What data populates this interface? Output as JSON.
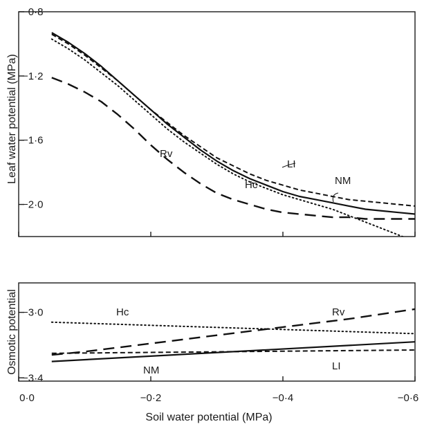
{
  "chart_data": [
    {
      "type": "line",
      "title": "",
      "xlabel": "Soil water potential (MPa)",
      "ylabel": "Leaf water potential (MPa)",
      "xlim": [
        0.0,
        -0.6
      ],
      "ylim": [
        -2.2,
        -0.8
      ],
      "yticks": [
        -0.8,
        -1.2,
        -1.6,
        -2.0
      ],
      "ytick_labels": [
        "−0·8",
        "−1·2",
        "−1·6",
        "−2·0"
      ],
      "series": [
        {
          "name": "NM",
          "style": "solid",
          "x": [
            -0.05,
            -0.075,
            -0.1,
            -0.125,
            -0.15,
            -0.175,
            -0.2,
            -0.225,
            -0.25,
            -0.275,
            -0.3,
            -0.325,
            -0.35,
            -0.375,
            -0.4,
            -0.425,
            -0.45,
            -0.475,
            -0.5,
            -0.525,
            -0.55,
            -0.575,
            -0.6
          ],
          "y": [
            -0.93,
            -0.99,
            -1.06,
            -1.14,
            -1.23,
            -1.32,
            -1.41,
            -1.5,
            -1.58,
            -1.66,
            -1.73,
            -1.79,
            -1.84,
            -1.88,
            -1.92,
            -1.95,
            -1.97,
            -1.99,
            -2.01,
            -2.03,
            -2.04,
            -2.05,
            -2.06
          ]
        },
        {
          "name": "LI",
          "style": "short-dash",
          "x": [
            -0.05,
            -0.075,
            -0.1,
            -0.125,
            -0.15,
            -0.175,
            -0.2,
            -0.225,
            -0.25,
            -0.275,
            -0.3,
            -0.325,
            -0.35,
            -0.375,
            -0.4,
            -0.425,
            -0.45,
            -0.475,
            -0.5,
            -0.525,
            -0.55,
            -0.575,
            -0.6
          ],
          "y": [
            -0.94,
            -1.0,
            -1.07,
            -1.15,
            -1.23,
            -1.32,
            -1.41,
            -1.49,
            -1.57,
            -1.64,
            -1.71,
            -1.76,
            -1.81,
            -1.85,
            -1.88,
            -1.91,
            -1.93,
            -1.95,
            -1.97,
            -1.98,
            -1.99,
            -2.0,
            -2.01
          ]
        },
        {
          "name": "Hc",
          "style": "dotted",
          "x": [
            -0.05,
            -0.075,
            -0.1,
            -0.125,
            -0.15,
            -0.175,
            -0.2,
            -0.225,
            -0.25,
            -0.275,
            -0.3,
            -0.325,
            -0.35,
            -0.375,
            -0.4,
            -0.425,
            -0.45,
            -0.475,
            -0.5,
            -0.525,
            -0.55,
            -0.575,
            -0.6
          ],
          "y": [
            -0.97,
            -1.03,
            -1.1,
            -1.18,
            -1.26,
            -1.35,
            -1.44,
            -1.53,
            -1.61,
            -1.68,
            -1.75,
            -1.81,
            -1.86,
            -1.9,
            -1.94,
            -1.97,
            -2.0,
            -2.03,
            -2.07,
            -2.11,
            -2.15,
            -2.19,
            -2.23
          ]
        },
        {
          "name": "Rv",
          "style": "long-dash",
          "x": [
            -0.05,
            -0.075,
            -0.1,
            -0.125,
            -0.15,
            -0.175,
            -0.2,
            -0.225,
            -0.25,
            -0.275,
            -0.3,
            -0.325,
            -0.35,
            -0.375,
            -0.4,
            -0.425,
            -0.45,
            -0.475,
            -0.5,
            -0.525,
            -0.55,
            -0.575,
            -0.6
          ],
          "y": [
            -1.21,
            -1.25,
            -1.3,
            -1.36,
            -1.44,
            -1.53,
            -1.63,
            -1.72,
            -1.8,
            -1.87,
            -1.93,
            -1.97,
            -2.0,
            -2.03,
            -2.05,
            -2.06,
            -2.07,
            -2.08,
            -2.08,
            -2.09,
            -2.09,
            -2.09,
            -2.09
          ]
        }
      ],
      "labels": [
        "Rv",
        "Hc",
        "LI",
        "NM"
      ]
    },
    {
      "type": "line",
      "title": "",
      "xlabel": "Soil water potential (MPa)",
      "ylabel": "Osmotic potential",
      "xlim": [
        0.0,
        -0.6
      ],
      "ylim": [
        -3.42,
        -2.82
      ],
      "xticks": [
        0.0,
        -0.2,
        -0.4,
        -0.6
      ],
      "xtick_labels": [
        "0·0",
        "−0·2",
        "−0·4",
        "−0·6"
      ],
      "yticks": [
        -3.0,
        -3.4
      ],
      "ytick_labels": [
        "−3·0",
        "−3·4"
      ],
      "series": [
        {
          "name": "Hc",
          "style": "dotted",
          "x": [
            -0.05,
            -0.6
          ],
          "y": [
            -3.06,
            -3.13
          ]
        },
        {
          "name": "Rv",
          "style": "long-dash",
          "x": [
            -0.05,
            -0.1,
            -0.2,
            -0.3,
            -0.4,
            -0.5,
            -0.6
          ],
          "y": [
            -3.26,
            -3.24,
            -3.19,
            -3.14,
            -3.09,
            -3.04,
            -2.98
          ]
        },
        {
          "name": "NM",
          "style": "solid",
          "x": [
            -0.05,
            -0.6
          ],
          "y": [
            -3.3,
            -3.18
          ]
        },
        {
          "name": "LI",
          "style": "short-dash",
          "x": [
            -0.05,
            -0.6
          ],
          "y": [
            -3.25,
            -3.23
          ]
        }
      ],
      "labels": [
        "Hc",
        "Rv",
        "NM",
        "LI"
      ]
    }
  ]
}
